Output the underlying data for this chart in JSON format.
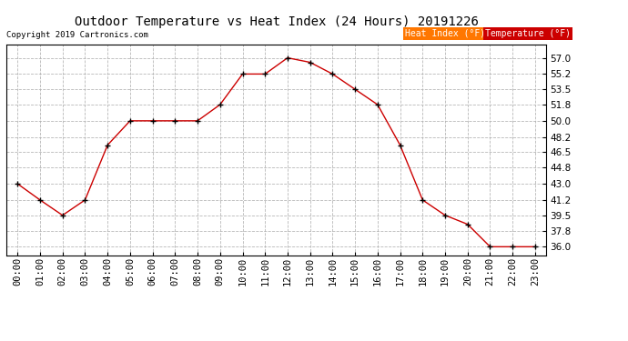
{
  "title": "Outdoor Temperature vs Heat Index (24 Hours) 20191226",
  "copyright": "Copyright 2019 Cartronics.com",
  "hours": [
    "00:00",
    "01:00",
    "02:00",
    "03:00",
    "04:00",
    "05:00",
    "06:00",
    "07:00",
    "08:00",
    "09:00",
    "10:00",
    "11:00",
    "12:00",
    "13:00",
    "14:00",
    "15:00",
    "16:00",
    "17:00",
    "18:00",
    "19:00",
    "20:00",
    "21:00",
    "22:00",
    "23:00"
  ],
  "temperature": [
    43.0,
    41.2,
    39.5,
    41.2,
    47.3,
    50.0,
    50.0,
    50.0,
    50.0,
    51.8,
    55.2,
    55.2,
    57.0,
    56.5,
    55.2,
    53.5,
    51.8,
    47.3,
    41.2,
    39.5,
    38.5,
    36.0,
    36.0,
    36.0
  ],
  "ylim": [
    35.0,
    58.5
  ],
  "yticks": [
    36.0,
    37.8,
    39.5,
    41.2,
    43.0,
    44.8,
    46.5,
    48.2,
    50.0,
    51.8,
    53.5,
    55.2,
    57.0
  ],
  "line_color": "#cc0000",
  "marker_color": "#000000",
  "bg_color": "#ffffff",
  "grid_color": "#b0b0b0",
  "title_fontsize": 10,
  "legend_heat_index_bg": "#ff7700",
  "legend_temp_bg": "#cc0000",
  "legend_text_color": "#ffffff"
}
